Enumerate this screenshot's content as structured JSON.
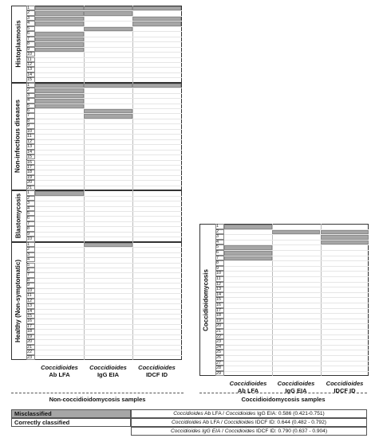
{
  "left_panel": {
    "columns": [
      {
        "genus": "Coccidioides",
        "test": "Ab LFA"
      },
      {
        "genus": "Coccidioides",
        "test": "IgG EIA"
      },
      {
        "genus": "Coccidioides",
        "test": "IDCF ID"
      }
    ],
    "sample_title": "Non-coccidioidomycosis samples",
    "groups": [
      {
        "label": "Histoplasmosis",
        "rows": 15,
        "misclassified": [
          [
            1,
            1
          ],
          [
            1,
            2
          ],
          [
            1,
            3
          ],
          [
            2,
            1
          ],
          [
            2,
            2
          ],
          [
            3,
            1
          ],
          [
            3,
            3
          ],
          [
            4,
            1
          ],
          [
            4,
            3
          ],
          [
            5,
            2
          ],
          [
            6,
            1
          ],
          [
            7,
            1
          ],
          [
            8,
            1
          ],
          [
            9,
            1
          ]
        ]
      },
      {
        "label": "Non-infectious diseases",
        "rows": 21,
        "misclassified": [
          [
            1,
            1
          ],
          [
            1,
            2
          ],
          [
            1,
            3
          ],
          [
            2,
            1
          ],
          [
            3,
            1
          ],
          [
            4,
            1
          ],
          [
            5,
            1
          ],
          [
            6,
            2
          ],
          [
            7,
            2
          ]
        ]
      },
      {
        "label": "Blastomycosis",
        "rows": 10,
        "misclassified": [
          [
            1,
            1
          ]
        ]
      },
      {
        "label": "Healthy (Non-symptomatic)",
        "rows": 23,
        "misclassified": [
          [
            1,
            2
          ]
        ]
      }
    ]
  },
  "right_panel": {
    "columns": [
      {
        "genus": "Coccidioides",
        "test": "Ab LFA"
      },
      {
        "genus": "Coccidioides",
        "test": "IgG EIA"
      },
      {
        "genus": "Coccidioides",
        "test": "IDCF ID"
      }
    ],
    "sample_title": "Coccidioidomycosis samples",
    "groups": [
      {
        "label": "Coccidioidomycosis",
        "rows": 29,
        "misclassified": [
          [
            1,
            1
          ],
          [
            2,
            2
          ],
          [
            2,
            3
          ],
          [
            3,
            3
          ],
          [
            4,
            3
          ],
          [
            5,
            1
          ],
          [
            6,
            1
          ],
          [
            7,
            1
          ]
        ]
      }
    ]
  },
  "legend": {
    "misclassified": "Misclassified",
    "correct": "Correctly classified",
    "misclassified_color": "#a6a6a6",
    "correct_color": "#ffffff"
  },
  "stats": [
    {
      "a_genus": "Coccidioides",
      "a_test": " Ab LFA / ",
      "b_genus": "Coccidioides",
      "b_test": " IgG EIA: 0.586 (0.421-0.751)"
    },
    {
      "a_genus": "Coccidioides",
      "a_test": " Ab LFA / ",
      "b_genus": "Coccidioides",
      "b_test": " IDCF ID: 0.644 (0.482 - 0.792)"
    },
    {
      "a_genus": "Coccidioides IgG EIA",
      "a_test": " / ",
      "b_genus": "Coccidioides",
      "b_test": " IDCF ID: 0.790 (0.637 - 0.904)"
    }
  ]
}
